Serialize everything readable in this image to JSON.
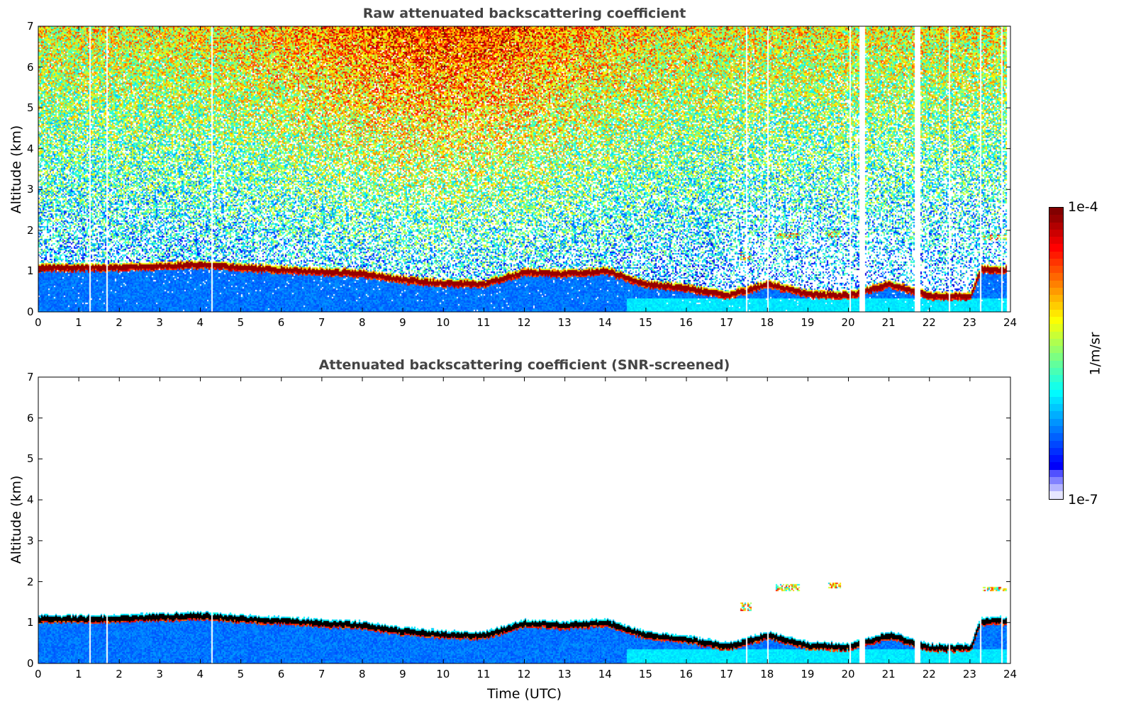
{
  "chart_data": [
    {
      "type": "heatmap",
      "title": "Raw attenuated backscattering coefficient",
      "xlabel": "",
      "ylabel": "Altitude (km)",
      "xlim": [
        0,
        24
      ],
      "ylim": [
        0,
        7
      ],
      "xticks": [
        "0",
        "1",
        "2",
        "3",
        "4",
        "5",
        "6",
        "7",
        "8",
        "9",
        "10",
        "11",
        "12",
        "13",
        "14",
        "15",
        "16",
        "17",
        "18",
        "19",
        "20",
        "21",
        "22",
        "23",
        "24"
      ],
      "yticks": [
        "0",
        "1",
        "2",
        "3",
        "4",
        "5",
        "6",
        "7"
      ],
      "screened": false
    },
    {
      "type": "heatmap",
      "title": "Attenuated backscattering coefficient (SNR-screened)",
      "xlabel": "Time (UTC)",
      "ylabel": "Altitude (km)",
      "xlim": [
        0,
        24
      ],
      "ylim": [
        0,
        7
      ],
      "xticks": [
        "0",
        "1",
        "2",
        "3",
        "4",
        "5",
        "6",
        "7",
        "8",
        "9",
        "10",
        "11",
        "12",
        "13",
        "14",
        "15",
        "16",
        "17",
        "18",
        "19",
        "20",
        "21",
        "22",
        "23",
        "24"
      ],
      "yticks": [
        "0",
        "1",
        "2",
        "3",
        "4",
        "5",
        "6",
        "7"
      ],
      "screened": true
    }
  ],
  "layer_top_km": {
    "hours": [
      0,
      1,
      2,
      3,
      4,
      5,
      6,
      7,
      8,
      9,
      10,
      11,
      12,
      13,
      14,
      15,
      16,
      17,
      18,
      19,
      20,
      21,
      22,
      23,
      23.25,
      24
    ],
    "values": [
      1.1,
      1.1,
      1.1,
      1.15,
      1.18,
      1.1,
      1.05,
      1.0,
      0.95,
      0.8,
      0.72,
      0.7,
      1.0,
      0.95,
      1.02,
      0.7,
      0.6,
      0.42,
      0.7,
      0.45,
      0.42,
      0.7,
      0.4,
      0.4,
      1.05,
      1.05
    ]
  },
  "elevated_layers": [
    {
      "t0": 17.3,
      "t1": 17.6,
      "z0": 1.3,
      "z1": 1.5
    },
    {
      "t0": 18.2,
      "t1": 18.8,
      "z0": 1.8,
      "z1": 1.95
    },
    {
      "t0": 19.5,
      "t1": 19.8,
      "z0": 1.85,
      "z1": 2.0
    },
    {
      "t0": 23.3,
      "t1": 23.9,
      "z0": 1.78,
      "z1": 1.9
    }
  ],
  "data_gaps_hours": [
    [
      1.24,
      1.27
    ],
    [
      1.66,
      1.69
    ],
    [
      4.25,
      4.28
    ],
    [
      17.45,
      17.48
    ],
    [
      17.98,
      18.02
    ],
    [
      20.0,
      20.05
    ],
    [
      20.25,
      20.4
    ],
    [
      21.63,
      21.76
    ],
    [
      22.45,
      22.5
    ],
    [
      23.22,
      23.27
    ],
    [
      23.75,
      23.78
    ],
    [
      23.9,
      24.0
    ]
  ],
  "colorbar": {
    "label": "1/m/sr",
    "max_label": "1e-4",
    "min_label": "1e-7",
    "scale": "log",
    "range": [
      1e-07,
      0.0001
    ]
  }
}
